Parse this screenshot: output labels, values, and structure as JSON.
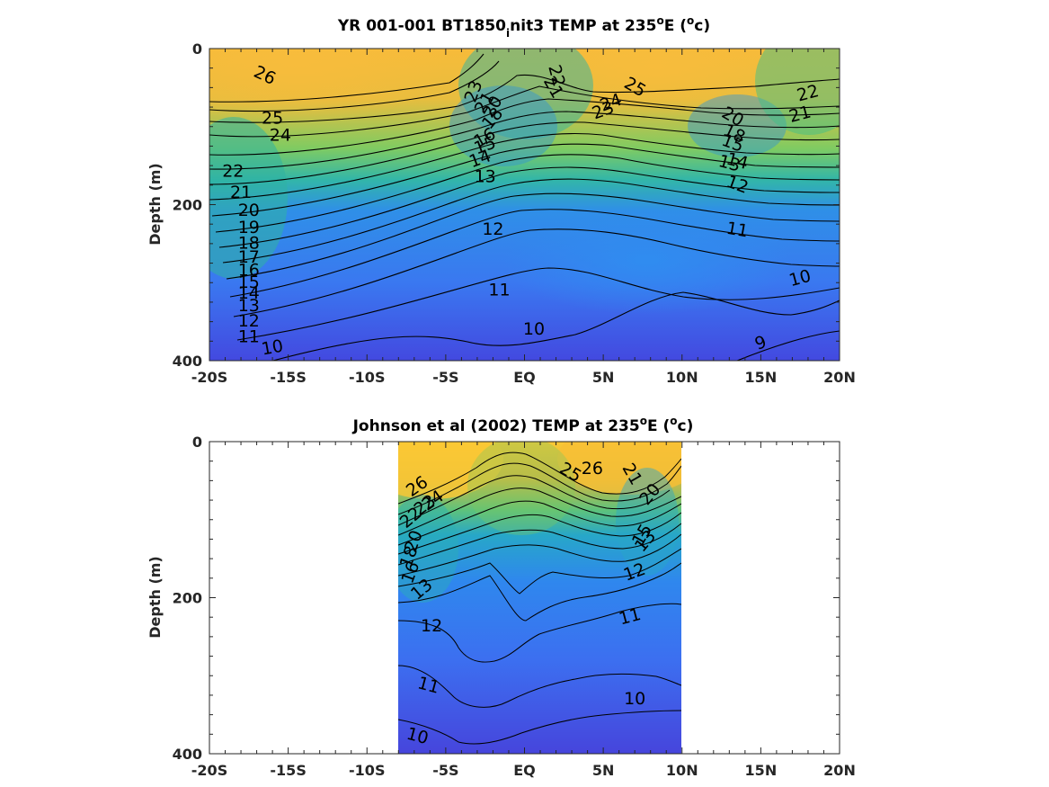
{
  "chart_data": [
    {
      "type": "contour",
      "title_main": "YR 001-001 BT1850",
      "title_sub": "i",
      "title_rest": "nit3 TEMP at 235",
      "title_sup": "o",
      "title_end": "E (",
      "title_sup2": "o",
      "title_close": "c)",
      "ylabel": "Depth (m)",
      "xlim": [
        -20,
        20
      ],
      "ylim": [
        0,
        400
      ],
      "x_ticks": [
        -20,
        -15,
        -10,
        -5,
        0,
        5,
        10,
        15,
        20
      ],
      "x_tick_labels": [
        "-20S",
        "-15S",
        "-10S",
        "-5S",
        "EQ",
        "5N",
        "10N",
        "15N",
        "20N"
      ],
      "y_ticks": [
        0,
        200,
        400
      ],
      "y_tick_labels": [
        "0",
        "200",
        "400"
      ],
      "data_xrange": [
        -20,
        20
      ],
      "contour_labels": [
        {
          "text": "26",
          "x": -16.5,
          "y": 35,
          "rot": 25
        },
        {
          "text": "25",
          "x": -16,
          "y": 90,
          "rot": 0
        },
        {
          "text": "24",
          "x": -15.5,
          "y": 112,
          "rot": 0
        },
        {
          "text": "22",
          "x": -18.5,
          "y": 158,
          "rot": 0
        },
        {
          "text": "21",
          "x": -18,
          "y": 185,
          "rot": 0
        },
        {
          "text": "20",
          "x": -17.5,
          "y": 208,
          "rot": 0
        },
        {
          "text": "19",
          "x": -17.5,
          "y": 230,
          "rot": 0
        },
        {
          "text": "18",
          "x": -17.5,
          "y": 250,
          "rot": 0
        },
        {
          "text": "17",
          "x": -17.5,
          "y": 268,
          "rot": 0
        },
        {
          "text": "16",
          "x": -17.5,
          "y": 285,
          "rot": 0
        },
        {
          "text": "15",
          "x": -17.5,
          "y": 300,
          "rot": 0
        },
        {
          "text": "14",
          "x": -17.5,
          "y": 314,
          "rot": 0
        },
        {
          "text": "13",
          "x": -17.5,
          "y": 330,
          "rot": 0
        },
        {
          "text": "12",
          "x": -17.5,
          "y": 350,
          "rot": 0
        },
        {
          "text": "11",
          "x": -17.5,
          "y": 370,
          "rot": 0
        },
        {
          "text": "10",
          "x": -16,
          "y": 384,
          "rot": -10
        },
        {
          "text": "23",
          "x": -3.2,
          "y": 55,
          "rot": -70
        },
        {
          "text": "21",
          "x": -2.5,
          "y": 70,
          "rot": -60
        },
        {
          "text": "20",
          "x": -2,
          "y": 75,
          "rot": -60
        },
        {
          "text": "18",
          "x": -2,
          "y": 90,
          "rot": -50
        },
        {
          "text": "16",
          "x": -2.5,
          "y": 115,
          "rot": -30
        },
        {
          "text": "15",
          "x": -2.5,
          "y": 125,
          "rot": -20
        },
        {
          "text": "14",
          "x": -2.8,
          "y": 142,
          "rot": -20
        },
        {
          "text": "13",
          "x": -2.5,
          "y": 165,
          "rot": 0
        },
        {
          "text": "12",
          "x": -2,
          "y": 232,
          "rot": 0
        },
        {
          "text": "11",
          "x": -1.6,
          "y": 310,
          "rot": 0
        },
        {
          "text": "10",
          "x": 0.6,
          "y": 360,
          "rot": 0
        },
        {
          "text": "22",
          "x": 2,
          "y": 35,
          "rot": 75
        },
        {
          "text": "21",
          "x": 1.8,
          "y": 50,
          "rot": 60
        },
        {
          "text": "24",
          "x": 5.5,
          "y": 70,
          "rot": -20
        },
        {
          "text": "23",
          "x": 5,
          "y": 80,
          "rot": -20
        },
        {
          "text": "25",
          "x": 7,
          "y": 50,
          "rot": 30
        },
        {
          "text": "20",
          "x": 13.2,
          "y": 88,
          "rot": 30
        },
        {
          "text": "18",
          "x": 13.3,
          "y": 110,
          "rot": 25
        },
        {
          "text": "15",
          "x": 13.2,
          "y": 122,
          "rot": 20
        },
        {
          "text": "14",
          "x": 13.5,
          "y": 145,
          "rot": 15
        },
        {
          "text": "13",
          "x": 13,
          "y": 148,
          "rot": 15
        },
        {
          "text": "12",
          "x": 13.5,
          "y": 175,
          "rot": 20
        },
        {
          "text": "11",
          "x": 13.5,
          "y": 233,
          "rot": 10
        },
        {
          "text": "10",
          "x": 17.5,
          "y": 295,
          "rot": -15
        },
        {
          "text": "9",
          "x": 15,
          "y": 378,
          "rot": -20
        },
        {
          "text": "22",
          "x": 18,
          "y": 58,
          "rot": -15
        },
        {
          "text": "21",
          "x": 17.5,
          "y": 85,
          "rot": -15
        }
      ]
    },
    {
      "type": "contour",
      "title_main": "Johnson et al (2002) TEMP at 235",
      "title_sup": "o",
      "title_end": "E (",
      "title_sup2": "o",
      "title_close": "c)",
      "ylabel": "Depth (m)",
      "xlim": [
        -20,
        20
      ],
      "ylim": [
        0,
        400
      ],
      "x_ticks": [
        -20,
        -15,
        -10,
        -5,
        0,
        5,
        10,
        15,
        20
      ],
      "x_tick_labels": [
        "-20S",
        "-15S",
        "-10S",
        "-5S",
        "EQ",
        "5N",
        "10N",
        "15N",
        "20N"
      ],
      "y_ticks": [
        0,
        200,
        400
      ],
      "y_tick_labels": [
        "0",
        "200",
        "400"
      ],
      "data_xrange": [
        -8,
        10
      ],
      "contour_labels": [
        {
          "text": "26",
          "x": -6.8,
          "y": 58,
          "rot": -35
        },
        {
          "text": "23",
          "x": -6.3,
          "y": 82,
          "rot": -35
        },
        {
          "text": "24",
          "x": -5.8,
          "y": 76,
          "rot": -35
        },
        {
          "text": "22",
          "x": -7.2,
          "y": 98,
          "rot": -40
        },
        {
          "text": "20",
          "x": -7,
          "y": 128,
          "rot": -70
        },
        {
          "text": "18",
          "x": -7.3,
          "y": 148,
          "rot": -70
        },
        {
          "text": "16",
          "x": -7.2,
          "y": 168,
          "rot": -70
        },
        {
          "text": "13",
          "x": -6.5,
          "y": 190,
          "rot": -40
        },
        {
          "text": "12",
          "x": -5.9,
          "y": 237,
          "rot": 0
        },
        {
          "text": "11",
          "x": -6.1,
          "y": 313,
          "rot": 15
        },
        {
          "text": "10",
          "x": -6.8,
          "y": 378,
          "rot": 15
        },
        {
          "text": "25",
          "x": 2.9,
          "y": 40,
          "rot": 30
        },
        {
          "text": "26",
          "x": 4.3,
          "y": 35,
          "rot": 0
        },
        {
          "text": "21",
          "x": 6.8,
          "y": 42,
          "rot": 60
        },
        {
          "text": "20",
          "x": 8,
          "y": 68,
          "rot": -50
        },
        {
          "text": "15",
          "x": 7.5,
          "y": 120,
          "rot": -60
        },
        {
          "text": "13",
          "x": 7.7,
          "y": 128,
          "rot": -50
        },
        {
          "text": "12",
          "x": 7,
          "y": 168,
          "rot": -20
        },
        {
          "text": "11",
          "x": 6.7,
          "y": 225,
          "rot": -15
        },
        {
          "text": "10",
          "x": 7,
          "y": 330,
          "rot": 0
        }
      ]
    }
  ]
}
